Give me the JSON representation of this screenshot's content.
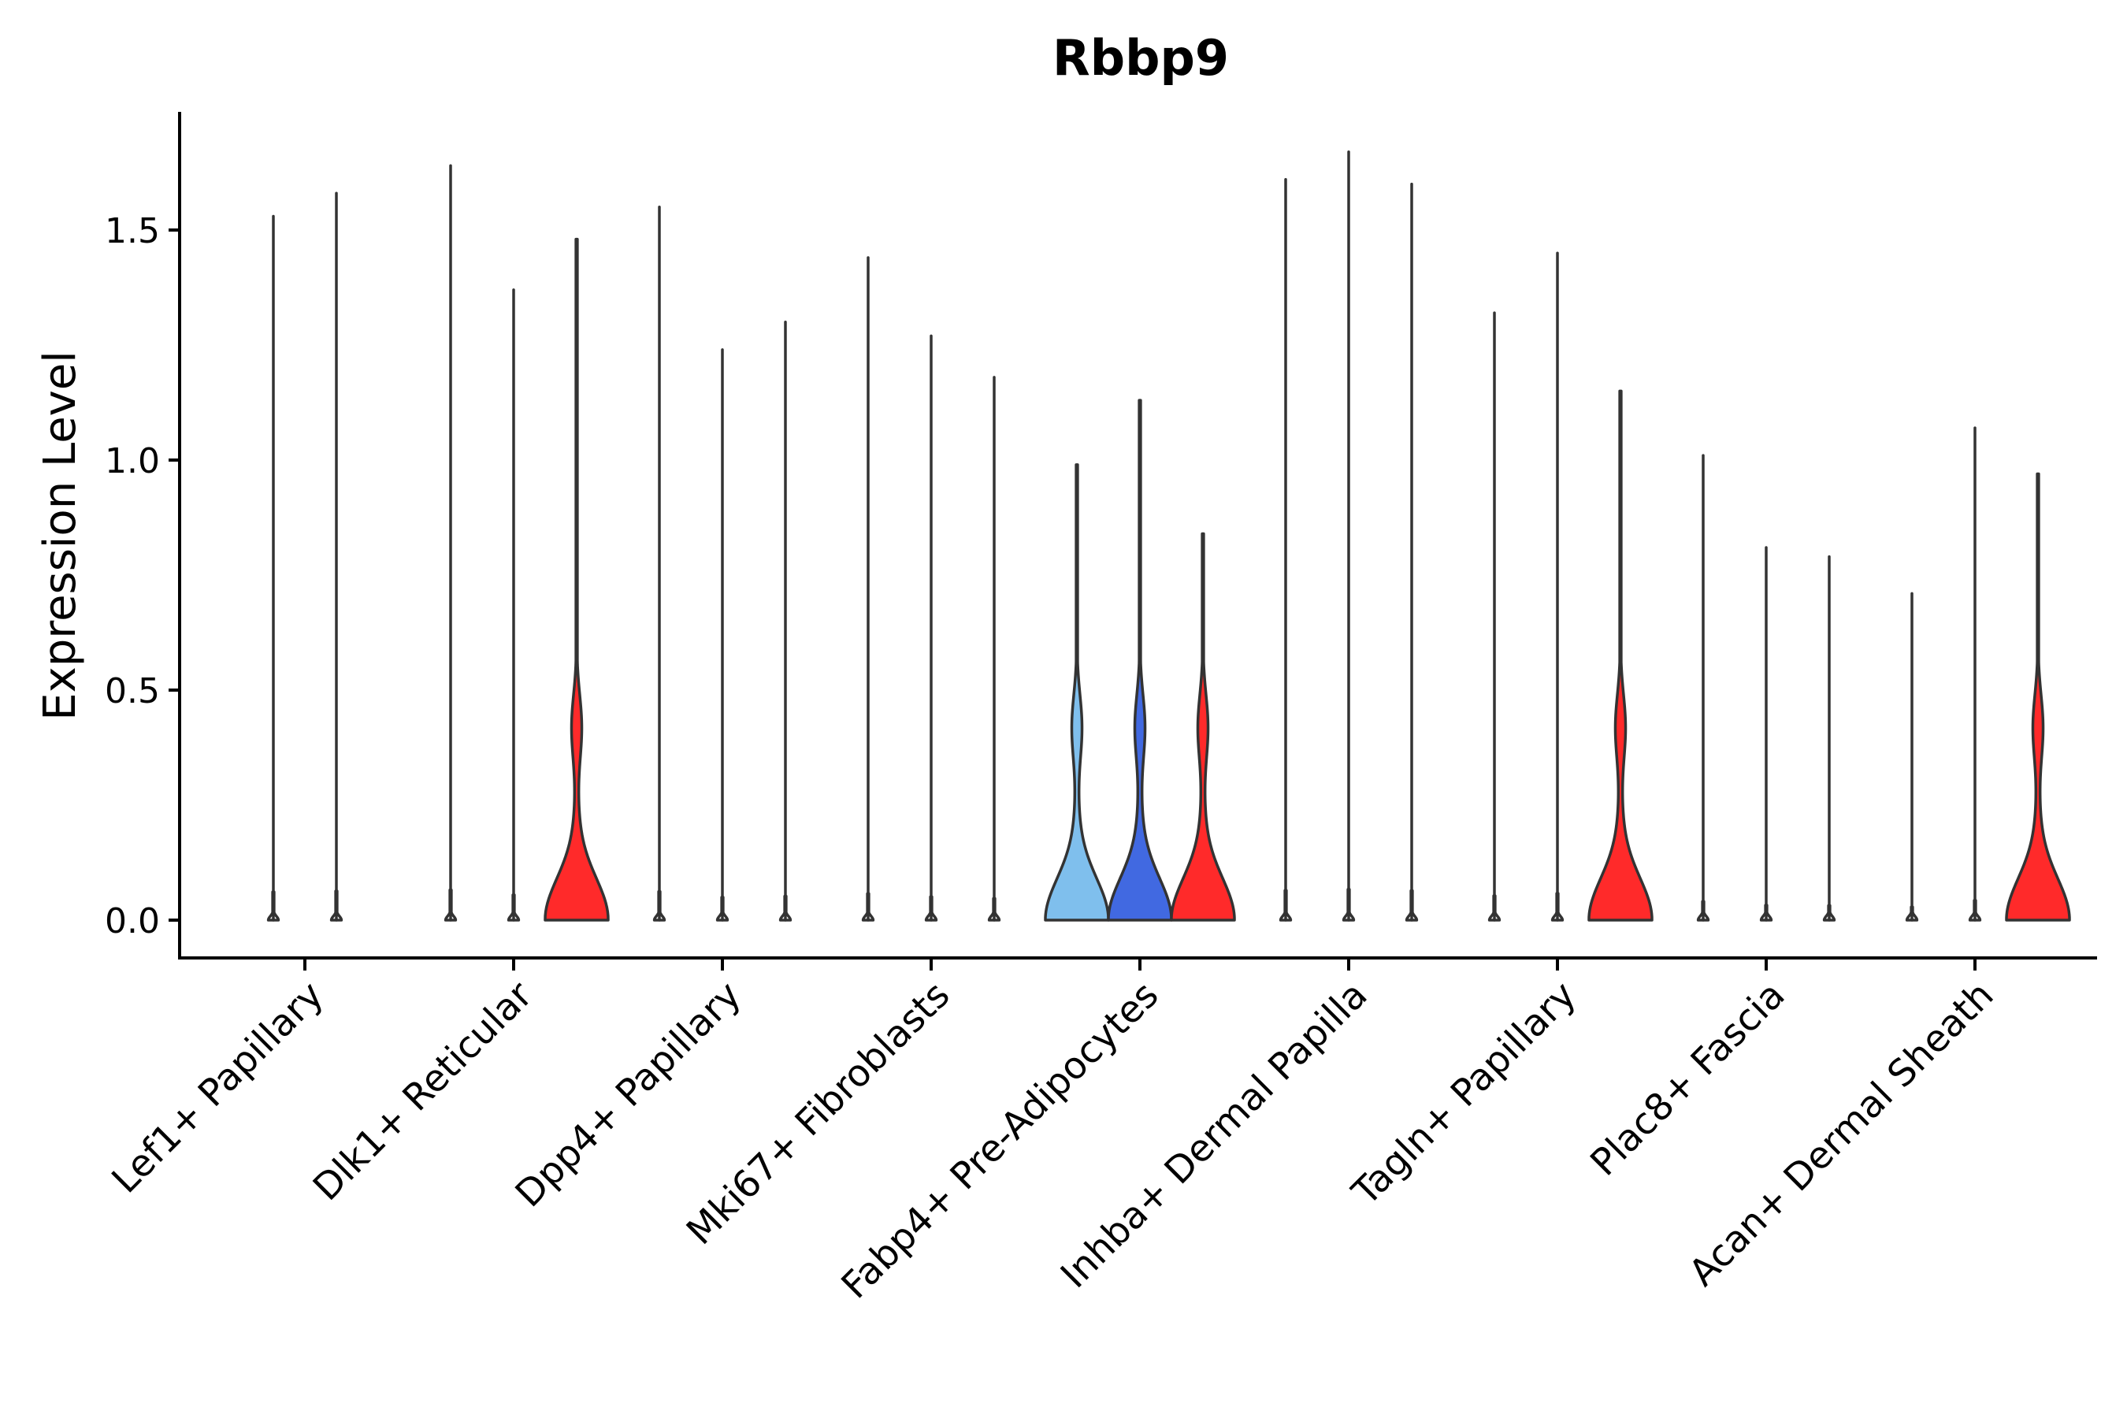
{
  "chart_data": {
    "type": "violin",
    "title": "Rbbp9",
    "xlabel": "",
    "ylabel": "Expression Level",
    "ylim": [
      -0.085,
      1.75
    ],
    "yticks": [
      "0.0",
      "0.5",
      "1.0",
      "1.5"
    ],
    "ytick_values": [
      0.0,
      0.5,
      1.0,
      1.5
    ],
    "categories": [
      "Lef1+ Papillary",
      "Dlk1+ Reticular",
      "Dpp4+ Papillary",
      "Mki67+ Fibroblasts",
      "Fabp4+ Pre-Adipocytes",
      "Inhba+ Dermal Papilla",
      "Tagln+ Papillary",
      "Plac8+ Fascia",
      "Acan+ Dermal Sheath"
    ],
    "colors": {
      "light_blue": "#7fbfed",
      "blue": "#4169e1",
      "red": "#ff2a2a",
      "outline": "#333333"
    },
    "groups": [
      {
        "category": "Lef1+ Papillary",
        "violins": [
          {
            "max": 1.53,
            "color": "none",
            "shape": "flat"
          },
          {
            "max": 1.58,
            "color": "none",
            "shape": "flat"
          }
        ]
      },
      {
        "category": "Dlk1+ Reticular",
        "violins": [
          {
            "max": 1.64,
            "color": "none",
            "shape": "flat"
          },
          {
            "max": 1.37,
            "color": "none",
            "shape": "flat"
          },
          {
            "max": 1.48,
            "color": "red",
            "shape": "bimodal"
          }
        ]
      },
      {
        "category": "Dpp4+ Papillary",
        "violins": [
          {
            "max": 1.55,
            "color": "none",
            "shape": "flat"
          },
          {
            "max": 1.24,
            "color": "none",
            "shape": "flat"
          },
          {
            "max": 1.3,
            "color": "none",
            "shape": "flat"
          }
        ]
      },
      {
        "category": "Mki67+ Fibroblasts",
        "violins": [
          {
            "max": 1.44,
            "color": "none",
            "shape": "flat"
          },
          {
            "max": 1.27,
            "color": "none",
            "shape": "flat"
          },
          {
            "max": 1.18,
            "color": "none",
            "shape": "flat"
          }
        ]
      },
      {
        "category": "Fabp4+ Pre-Adipocytes",
        "violins": [
          {
            "max": 0.99,
            "color": "light_blue",
            "shape": "bimodal"
          },
          {
            "max": 1.13,
            "color": "blue",
            "shape": "bimodal"
          },
          {
            "max": 0.84,
            "color": "red",
            "shape": "bimodal"
          }
        ]
      },
      {
        "category": "Inhba+ Dermal Papilla",
        "violins": [
          {
            "max": 1.61,
            "color": "none",
            "shape": "flat"
          },
          {
            "max": 1.67,
            "color": "none",
            "shape": "flat"
          },
          {
            "max": 1.6,
            "color": "none",
            "shape": "flat"
          }
        ]
      },
      {
        "category": "Tagln+ Papillary",
        "violins": [
          {
            "max": 1.32,
            "color": "none",
            "shape": "flat"
          },
          {
            "max": 1.45,
            "color": "none",
            "shape": "flat"
          },
          {
            "max": 1.15,
            "color": "red",
            "shape": "bimodal"
          }
        ]
      },
      {
        "category": "Plac8+ Fascia",
        "violins": [
          {
            "max": 1.01,
            "color": "none",
            "shape": "flat"
          },
          {
            "max": 0.81,
            "color": "none",
            "shape": "flat"
          },
          {
            "max": 0.79,
            "color": "none",
            "shape": "flat"
          }
        ]
      },
      {
        "category": "Acan+ Dermal Sheath",
        "violins": [
          {
            "max": 0.71,
            "color": "none",
            "shape": "flat"
          },
          {
            "max": 1.07,
            "color": "none",
            "shape": "flat"
          },
          {
            "max": 0.97,
            "color": "red",
            "shape": "bimodal"
          }
        ]
      }
    ]
  }
}
